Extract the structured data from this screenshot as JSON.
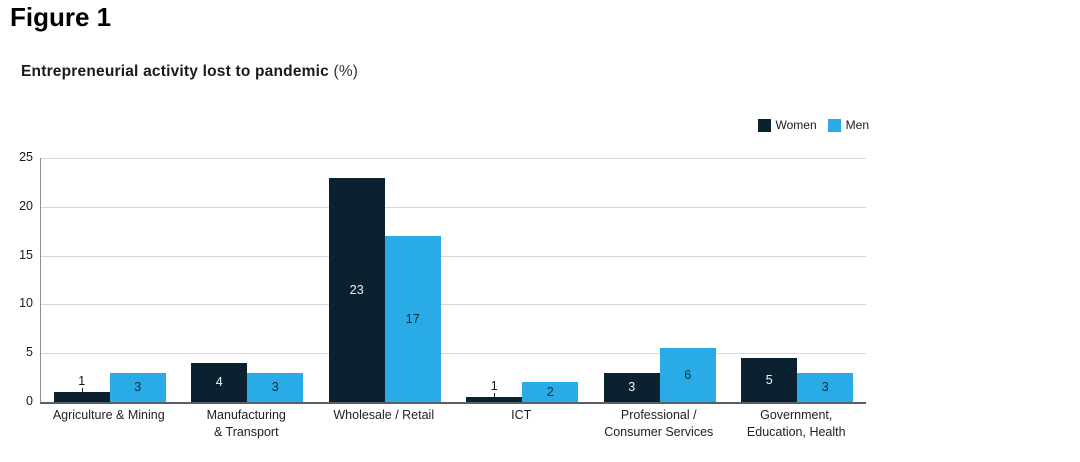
{
  "figure_label": "Figure 1",
  "chart": {
    "title": "Entrepreneurial activity lost to pandemic",
    "title_suffix": "(%)"
  },
  "chart_data": {
    "type": "bar",
    "title": "Entrepreneurial activity lost to pandemic (%)",
    "categories": [
      "Agriculture & Mining",
      "Manufacturing & Transport",
      "Wholesale / Retail",
      "ICT",
      "Professional / Consumer Services",
      "Government, Education, Health"
    ],
    "category_label_lines": [
      [
        "Agriculture & Mining"
      ],
      [
        "Manufacturing",
        "& Transport"
      ],
      [
        "Wholesale / Retail"
      ],
      [
        "ICT"
      ],
      [
        "Professional /",
        "Consumer Services"
      ],
      [
        "Government,",
        "Education, Health"
      ]
    ],
    "series": [
      {
        "name": "Women",
        "color": "#0c2130",
        "label_color": "#f2f2f2",
        "values": [
          1,
          4,
          23,
          1,
          3,
          5
        ],
        "bar_heights_units": [
          1,
          4,
          23,
          0.5,
          3,
          4.5
        ]
      },
      {
        "name": "Men",
        "color": "#29abe8",
        "label_color": "#142a3c",
        "values": [
          3,
          3,
          17,
          2,
          6,
          3
        ],
        "bar_heights_units": [
          3,
          3,
          17,
          2,
          5.5,
          3
        ]
      }
    ],
    "xlabel": "",
    "ylabel": "",
    "ylim": [
      0,
      25
    ],
    "yticks": [
      0,
      5,
      10,
      15,
      20,
      25
    ],
    "grid": true,
    "legend_position": "top-right",
    "outside_label_color": "#111111"
  },
  "colors": {
    "grid_line": "#d8d8d8",
    "y_axis_line": "#8a8f93",
    "x_axis_line": "#595f63",
    "tick_label": "#1a1a1a",
    "category_label": "#222222",
    "background": "#ffffff"
  }
}
